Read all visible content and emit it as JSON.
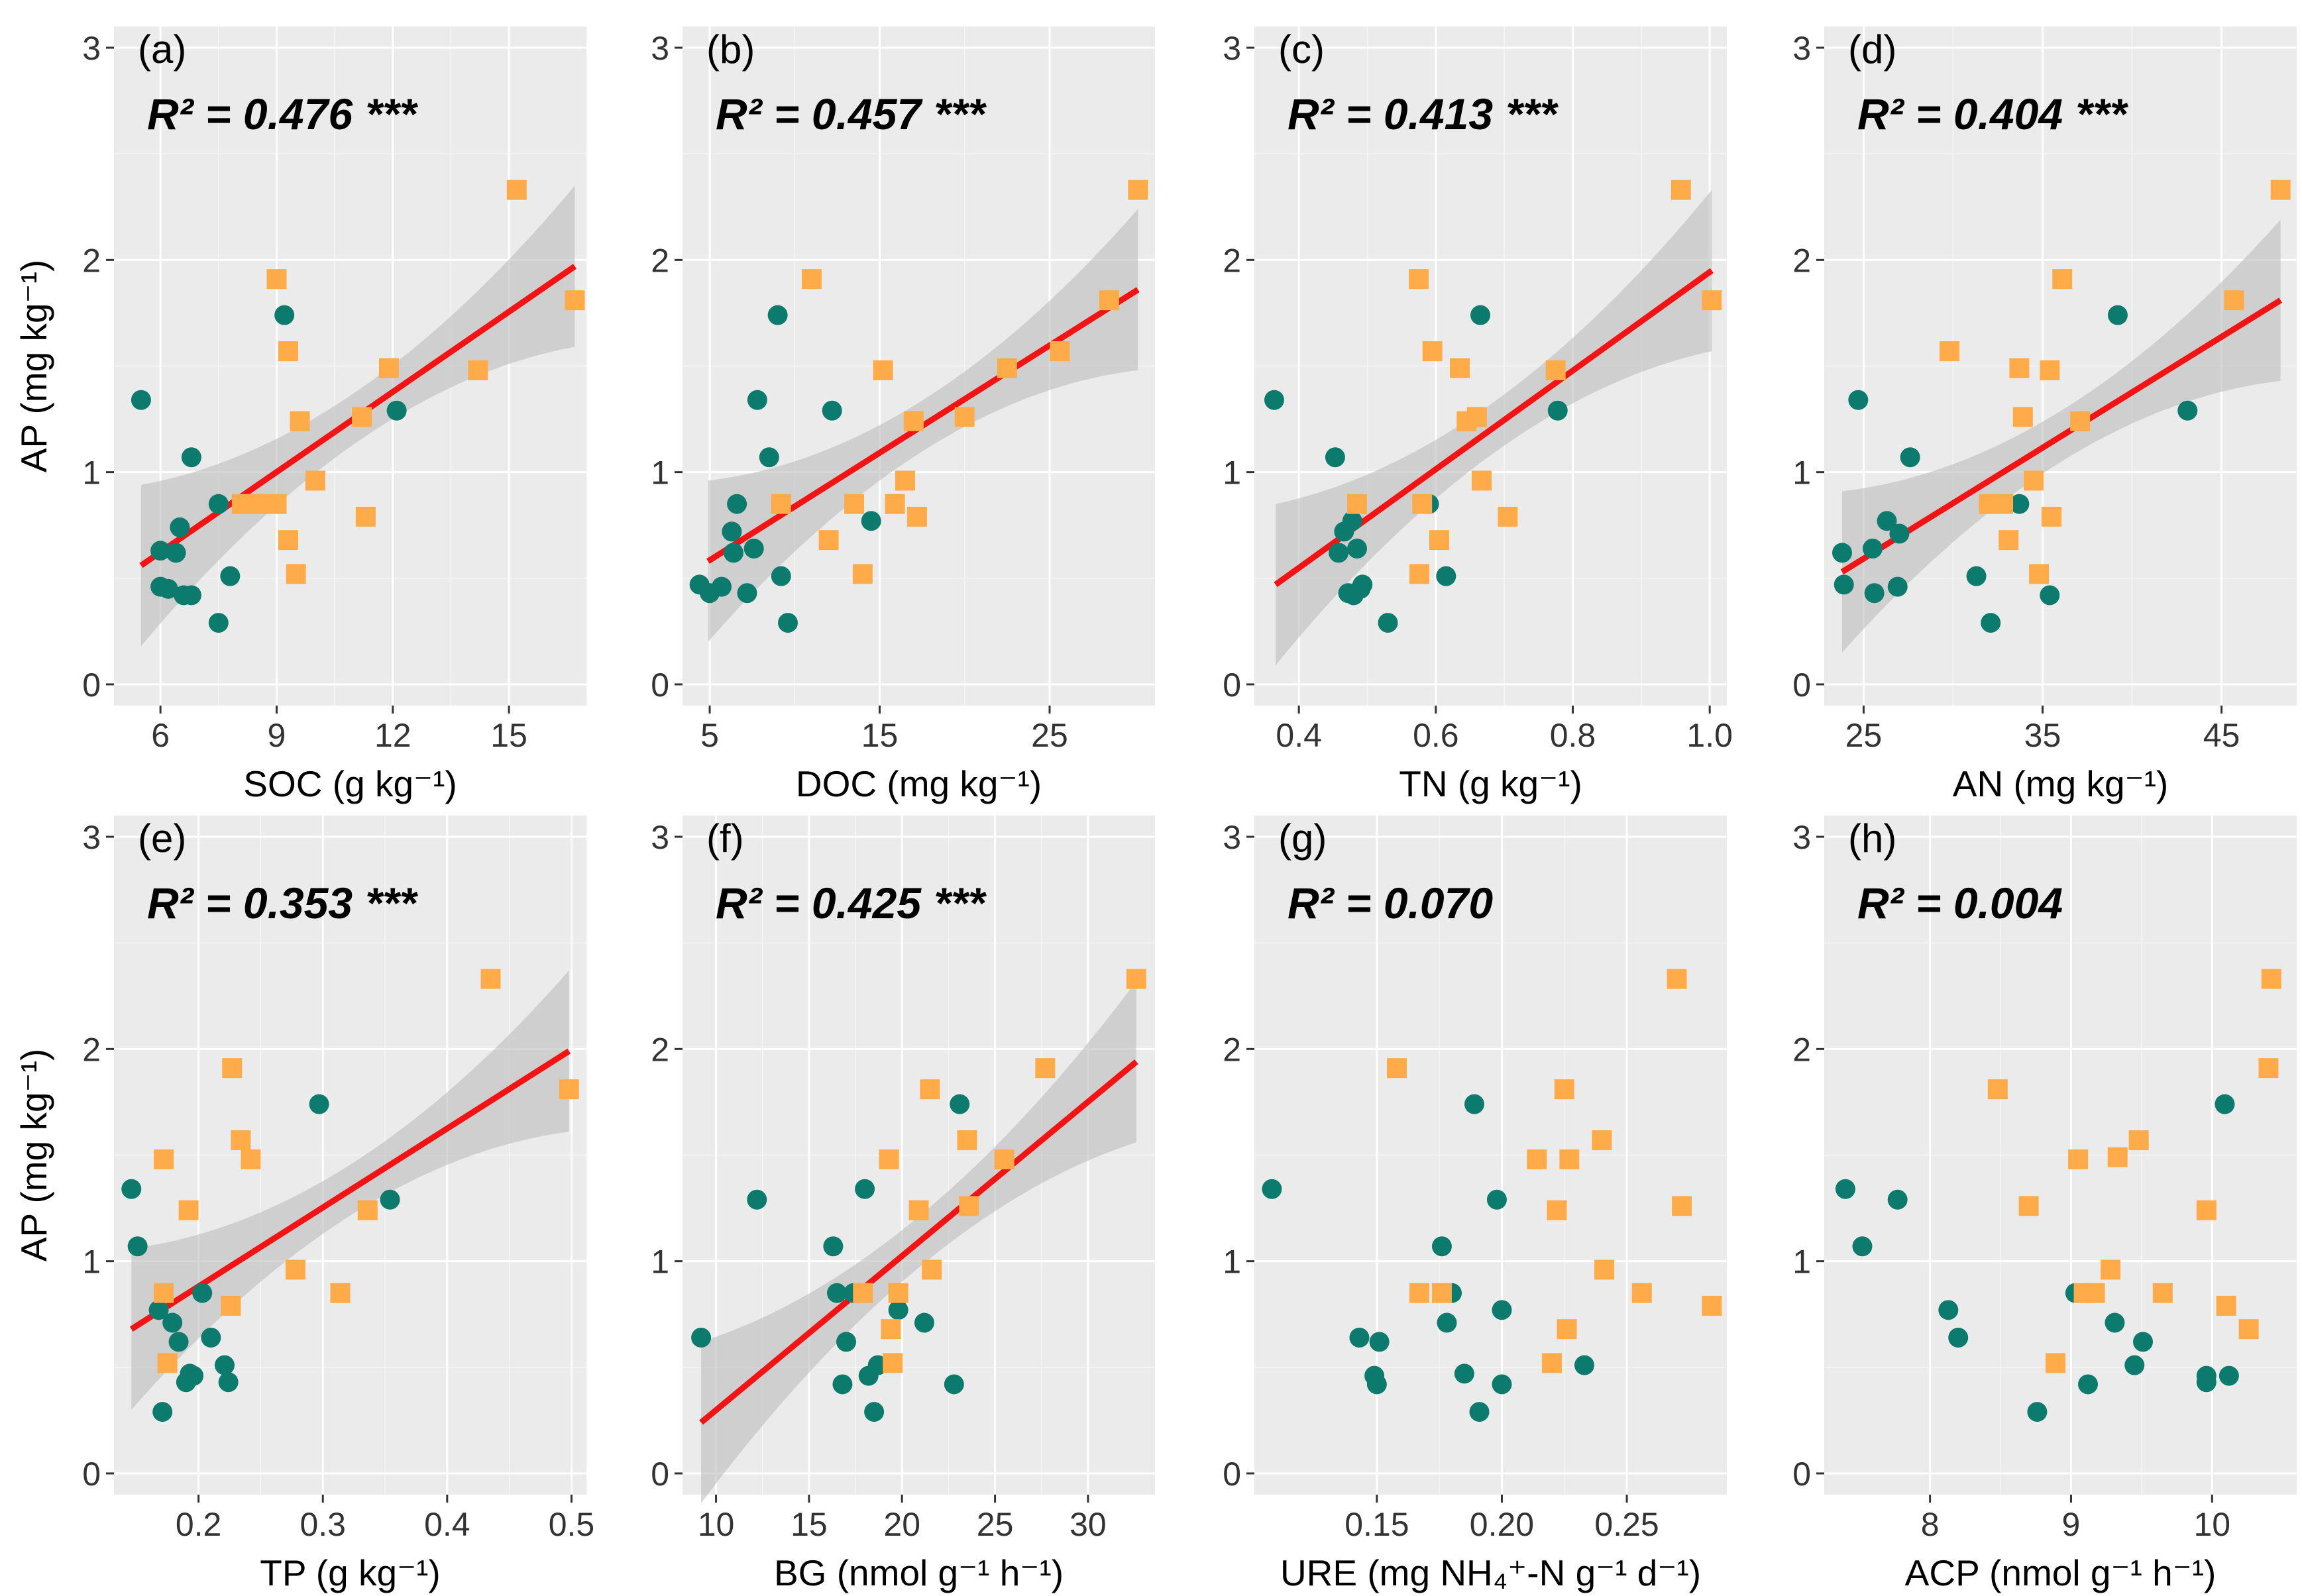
{
  "colors": {
    "panel_bg": "#ebebeb",
    "group_green": "#0d7a6e",
    "group_orange": "#ffab4a",
    "fit_line": "#f21414",
    "ci_band": "#bdbdbd"
  },
  "chart_data": [
    {
      "type": "scatter",
      "panel": "(a)",
      "r2": "R² = 0.476",
      "sig": "***",
      "xlabel": "SOC (g kg⁻¹)",
      "ylabel": "AP (mg kg⁻¹)",
      "xlim": [
        4.8,
        17.0
      ],
      "xticks": [
        6,
        9,
        12,
        15
      ],
      "xtick_labels": [
        "6",
        "9",
        "12",
        "15"
      ],
      "ylim": [
        -0.1,
        3.1
      ],
      "yticks": [
        0,
        1,
        2,
        3
      ],
      "ytick_labels": [
        "0",
        "1",
        "2",
        "3"
      ],
      "fit": [
        5.5,
        0.56,
        16.7,
        1.97
      ],
      "series": [
        {
          "name": "green",
          "marker": "circle",
          "x": [
            5.5,
            6.0,
            6.0,
            6.2,
            6.4,
            6.5,
            6.6,
            6.8,
            6.8,
            7.5,
            7.5,
            7.8,
            9.2,
            12.1
          ],
          "y": [
            1.34,
            0.63,
            0.46,
            0.45,
            0.62,
            0.74,
            0.42,
            1.07,
            0.42,
            0.85,
            0.29,
            0.51,
            1.74,
            1.29
          ]
        },
        {
          "name": "orange",
          "marker": "square",
          "x": [
            9.0,
            9.3,
            9.6,
            8.1,
            8.5,
            8.8,
            9.0,
            9.3,
            9.5,
            10.0,
            11.2,
            11.3,
            11.9,
            14.2,
            15.2,
            16.7
          ],
          "y": [
            1.91,
            1.57,
            1.24,
            0.85,
            0.85,
            0.85,
            0.85,
            0.68,
            0.52,
            0.96,
            1.26,
            0.79,
            1.49,
            1.48,
            2.33,
            1.81
          ]
        }
      ]
    },
    {
      "type": "scatter",
      "panel": "(b)",
      "r2": "R² = 0.457",
      "sig": "***",
      "xlabel": "DOC (mg kg⁻¹)",
      "ylabel": "",
      "xlim": [
        3.4,
        31.2
      ],
      "xticks": [
        5,
        15,
        25
      ],
      "xtick_labels": [
        "5",
        "15",
        "25"
      ],
      "ylim": [
        -0.1,
        3.1
      ],
      "yticks": [
        0,
        1,
        2,
        3
      ],
      "ytick_labels": [
        "0",
        "1",
        "2",
        "3"
      ],
      "fit": [
        4.9,
        0.58,
        30.2,
        1.86
      ],
      "series": [
        {
          "name": "green",
          "marker": "circle",
          "x": [
            4.4,
            5.0,
            5.7,
            6.3,
            6.4,
            6.6,
            7.2,
            7.6,
            7.8,
            8.5,
            9.0,
            9.2,
            9.6,
            12.2,
            14.5
          ],
          "y": [
            0.47,
            0.43,
            0.46,
            0.72,
            0.62,
            0.85,
            0.43,
            0.64,
            1.34,
            1.07,
            1.74,
            0.51,
            0.29,
            1.29,
            0.77
          ]
        },
        {
          "name": "orange",
          "marker": "square",
          "x": [
            11.0,
            9.2,
            12.0,
            13.5,
            14.0,
            15.2,
            15.9,
            16.5,
            17.0,
            17.2,
            20.0,
            22.5,
            25.6,
            28.5,
            30.2
          ],
          "y": [
            1.91,
            0.85,
            0.68,
            0.85,
            0.52,
            1.48,
            0.85,
            0.96,
            1.24,
            0.79,
            1.26,
            1.49,
            1.57,
            1.81,
            2.33
          ]
        }
      ]
    },
    {
      "type": "scatter",
      "panel": "(c)",
      "r2": "R² = 0.413",
      "sig": "***",
      "xlabel": "TN (g kg⁻¹)",
      "ylabel": "",
      "xlim": [
        0.335,
        1.025
      ],
      "xticks": [
        0.4,
        0.6,
        0.8,
        1.0
      ],
      "xtick_labels": [
        "0.4",
        "0.6",
        "0.8",
        "1.0"
      ],
      "ylim": [
        -0.1,
        3.1
      ],
      "yticks": [
        0,
        1,
        2,
        3
      ],
      "ytick_labels": [
        "0",
        "1",
        "2",
        "3"
      ],
      "fit": [
        0.366,
        0.47,
        1.003,
        1.95
      ],
      "series": [
        {
          "name": "green",
          "marker": "circle",
          "x": [
            0.364,
            0.453,
            0.458,
            0.466,
            0.472,
            0.478,
            0.48,
            0.485,
            0.49,
            0.493,
            0.53,
            0.59,
            0.615,
            0.665,
            0.778
          ],
          "y": [
            1.34,
            1.07,
            0.62,
            0.72,
            0.43,
            0.77,
            0.42,
            0.64,
            0.45,
            0.47,
            0.29,
            0.85,
            0.51,
            1.74,
            1.29
          ]
        },
        {
          "name": "orange",
          "marker": "square",
          "x": [
            0.485,
            0.575,
            0.576,
            0.58,
            0.595,
            0.605,
            0.635,
            0.645,
            0.66,
            0.667,
            0.705,
            0.775,
            0.958,
            1.003
          ],
          "y": [
            0.85,
            1.91,
            0.52,
            0.85,
            1.57,
            0.68,
            1.49,
            1.24,
            1.26,
            0.96,
            0.79,
            1.48,
            2.33,
            1.81
          ]
        }
      ]
    },
    {
      "type": "scatter",
      "panel": "(d)",
      "r2": "R² = 0.404",
      "sig": "***",
      "xlabel": "AN (mg kg⁻¹)",
      "ylabel": "",
      "xlim": [
        22.8,
        49.2
      ],
      "xticks": [
        25,
        35,
        45
      ],
      "xtick_labels": [
        "25",
        "35",
        "45"
      ],
      "ylim": [
        -0.1,
        3.1
      ],
      "yticks": [
        0,
        1,
        2,
        3
      ],
      "ytick_labels": [
        "0",
        "1",
        "2",
        "3"
      ],
      "fit": [
        23.8,
        0.53,
        48.3,
        1.81
      ],
      "series": [
        {
          "name": "green",
          "marker": "circle",
          "x": [
            23.8,
            23.9,
            24.7,
            25.5,
            25.6,
            26.3,
            26.9,
            27.0,
            27.6,
            31.3,
            32.1,
            33.7,
            35.4,
            39.2,
            43.1
          ],
          "y": [
            0.62,
            0.47,
            1.34,
            0.64,
            0.43,
            0.77,
            0.46,
            0.71,
            1.07,
            0.51,
            0.29,
            0.85,
            0.42,
            1.74,
            1.29
          ]
        },
        {
          "name": "orange",
          "marker": "square",
          "x": [
            29.8,
            32.0,
            32.8,
            33.1,
            33.7,
            33.9,
            34.5,
            34.8,
            35.4,
            35.5,
            36.1,
            37.1,
            45.7,
            48.3
          ],
          "y": [
            1.57,
            0.85,
            0.85,
            0.68,
            1.49,
            1.26,
            0.96,
            0.52,
            1.48,
            0.79,
            1.91,
            1.24,
            1.81,
            2.33
          ]
        }
      ]
    },
    {
      "type": "scatter",
      "panel": "(e)",
      "r2": "R² = 0.353",
      "sig": "***",
      "xlabel": "TP (g kg⁻¹)",
      "ylabel": "AP (mg kg⁻¹)",
      "xlim": [
        0.132,
        0.512
      ],
      "xticks": [
        0.2,
        0.3,
        0.4,
        0.5
      ],
      "xtick_labels": [
        "0.2",
        "0.3",
        "0.4",
        "0.5"
      ],
      "ylim": [
        -0.1,
        3.1
      ],
      "yticks": [
        0,
        1,
        2,
        3
      ],
      "ytick_labels": [
        "0",
        "1",
        "2",
        "3"
      ],
      "fit": [
        0.146,
        0.68,
        0.498,
        1.99
      ],
      "series": [
        {
          "name": "green",
          "marker": "circle",
          "x": [
            0.146,
            0.151,
            0.168,
            0.171,
            0.179,
            0.184,
            0.19,
            0.193,
            0.196,
            0.203,
            0.21,
            0.221,
            0.224,
            0.297,
            0.354
          ],
          "y": [
            1.34,
            1.07,
            0.77,
            0.29,
            0.71,
            0.62,
            0.43,
            0.47,
            0.46,
            0.85,
            0.64,
            0.51,
            0.43,
            1.74,
            1.29
          ]
        },
        {
          "name": "orange",
          "marker": "square",
          "x": [
            0.172,
            0.172,
            0.175,
            0.192,
            0.226,
            0.227,
            0.234,
            0.242,
            0.278,
            0.314,
            0.336,
            0.435,
            0.498
          ],
          "y": [
            1.48,
            0.85,
            0.52,
            1.24,
            0.79,
            1.91,
            1.57,
            1.48,
            0.96,
            0.85,
            1.24,
            2.33,
            1.81
          ]
        }
      ]
    },
    {
      "type": "scatter",
      "panel": "(f)",
      "r2": "R² = 0.425",
      "sig": "***",
      "xlabel": "BG (nmol g⁻¹ h⁻¹)",
      "ylabel": "",
      "xlim": [
        8.2,
        33.6
      ],
      "xticks": [
        10,
        15,
        20,
        25,
        30
      ],
      "xtick_labels": [
        "10",
        "15",
        "20",
        "25",
        "30"
      ],
      "ylim": [
        -0.1,
        3.1
      ],
      "yticks": [
        0,
        1,
        2,
        3
      ],
      "ytick_labels": [
        "0",
        "1",
        "2",
        "3"
      ],
      "fit": [
        9.2,
        0.24,
        32.6,
        1.94
      ],
      "series": [
        {
          "name": "green",
          "marker": "circle",
          "x": [
            9.2,
            12.2,
            16.3,
            16.5,
            16.8,
            17.0,
            17.4,
            18.0,
            18.2,
            18.5,
            18.7,
            19.8,
            21.2,
            22.8,
            23.1
          ],
          "y": [
            0.64,
            1.29,
            1.07,
            0.85,
            0.42,
            0.62,
            0.85,
            1.34,
            0.46,
            0.29,
            0.51,
            0.77,
            0.71,
            0.42,
            1.74
          ]
        },
        {
          "name": "orange",
          "marker": "square",
          "x": [
            17.9,
            19.3,
            19.4,
            19.5,
            19.8,
            20.9,
            21.5,
            21.6,
            23.5,
            23.6,
            25.5,
            27.7,
            32.6
          ],
          "y": [
            0.85,
            1.48,
            0.68,
            0.52,
            0.85,
            1.24,
            1.81,
            0.96,
            1.57,
            1.26,
            1.48,
            1.91,
            2.33
          ]
        }
      ]
    },
    {
      "type": "scatter",
      "panel": "(g)",
      "r2": "R² = 0.070",
      "sig": "",
      "xlabel": "URE (mg NH₄⁺-N g⁻¹ d⁻¹)",
      "ylabel": "",
      "xlim": [
        0.101,
        0.29
      ],
      "xticks": [
        0.15,
        0.2,
        0.25
      ],
      "xtick_labels": [
        "0.15",
        "0.20",
        "0.25"
      ],
      "ylim": [
        -0.1,
        3.1
      ],
      "yticks": [
        0,
        1,
        2,
        3
      ],
      "ytick_labels": [
        "0",
        "1",
        "2",
        "3"
      ],
      "fit": null,
      "series": [
        {
          "name": "green",
          "marker": "circle",
          "x": [
            0.108,
            0.143,
            0.149,
            0.151,
            0.15,
            0.176,
            0.178,
            0.18,
            0.185,
            0.189,
            0.191,
            0.198,
            0.2,
            0.2,
            0.233
          ],
          "y": [
            1.34,
            0.64,
            0.46,
            0.62,
            0.42,
            1.07,
            0.71,
            0.85,
            0.47,
            1.74,
            0.29,
            1.29,
            0.42,
            0.77,
            0.51
          ]
        },
        {
          "name": "orange",
          "marker": "square",
          "x": [
            0.158,
            0.167,
            0.176,
            0.214,
            0.22,
            0.222,
            0.225,
            0.226,
            0.227,
            0.24,
            0.241,
            0.256,
            0.27,
            0.272,
            0.284
          ],
          "y": [
            1.91,
            0.85,
            0.85,
            1.48,
            0.52,
            1.24,
            1.81,
            0.68,
            1.48,
            1.57,
            0.96,
            0.85,
            2.33,
            1.26,
            0.79
          ]
        }
      ]
    },
    {
      "type": "scatter",
      "panel": "(h)",
      "r2": "R² = 0.004",
      "sig": "",
      "xlabel": "ACP (nmol g⁻¹ h⁻¹)",
      "ylabel": "",
      "xlim": [
        7.25,
        10.6
      ],
      "xticks": [
        8,
        9,
        10
      ],
      "xtick_labels": [
        "8",
        "9",
        "10"
      ],
      "ylim": [
        -0.1,
        3.1
      ],
      "yticks": [
        0,
        1,
        2,
        3
      ],
      "ytick_labels": [
        "0",
        "1",
        "2",
        "3"
      ],
      "fit": null,
      "series": [
        {
          "name": "green",
          "marker": "circle",
          "x": [
            7.4,
            7.52,
            7.77,
            8.13,
            8.2,
            8.76,
            9.03,
            9.12,
            9.31,
            9.45,
            9.51,
            9.96,
            9.96,
            10.09,
            10.12
          ],
          "y": [
            1.34,
            1.07,
            1.29,
            0.77,
            0.64,
            0.29,
            0.85,
            0.42,
            0.71,
            0.51,
            0.62,
            0.46,
            0.43,
            1.74,
            0.46
          ]
        },
        {
          "name": "orange",
          "marker": "square",
          "x": [
            8.48,
            8.7,
            8.89,
            9.05,
            9.09,
            9.17,
            9.28,
            9.33,
            9.48,
            9.65,
            9.96,
            10.1,
            10.26,
            10.4,
            10.42
          ],
          "y": [
            1.81,
            1.26,
            0.52,
            1.48,
            0.85,
            0.85,
            0.96,
            1.49,
            1.57,
            0.85,
            1.24,
            0.79,
            0.68,
            1.91,
            2.33
          ]
        }
      ]
    }
  ]
}
